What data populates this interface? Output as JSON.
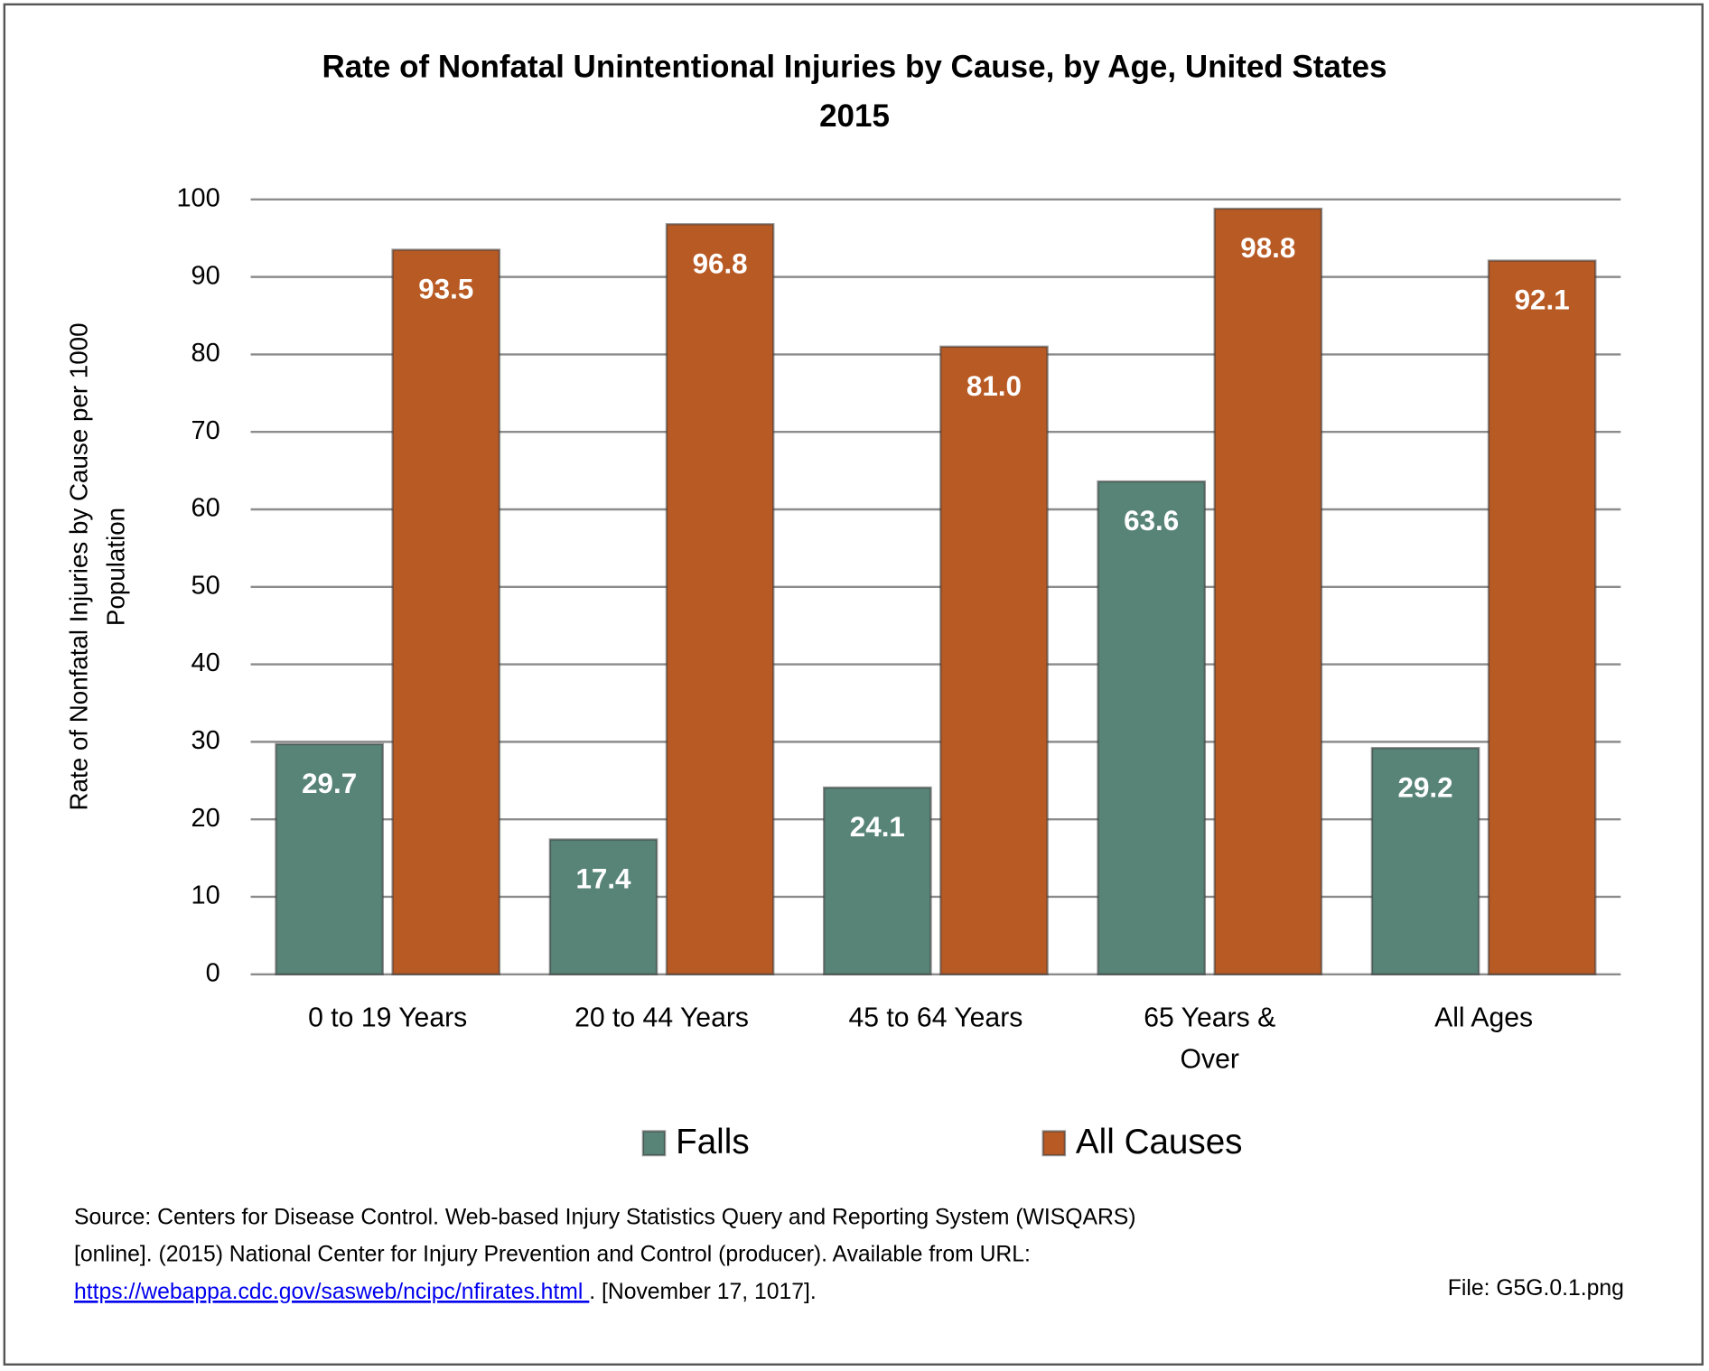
{
  "chart_data": {
    "type": "bar",
    "title": "Rate of Nonfatal Unintentional Injuries by Cause, by Age, United States 2015",
    "y_label": "Rate of Nonfatal Injuries by Cause per 1000 Population",
    "categories": [
      "0 to 19 Years",
      "20 to 44 Years",
      "45 to 64 Years",
      "65 Years & Over",
      "All Ages"
    ],
    "series": [
      {
        "name": "Falls",
        "color": "#588478",
        "values": [
          29.7,
          17.4,
          24.1,
          63.6,
          29.2
        ],
        "value_labels": [
          "29.7",
          "17.4",
          "24.1",
          "63.6",
          "29.2"
        ]
      },
      {
        "name": "All Causes",
        "color": "#b85a24",
        "values": [
          93.5,
          96.8,
          81.0,
          98.8,
          92.1
        ],
        "value_labels": [
          "93.5",
          "96.8",
          "81.0",
          "98.8",
          "92.1"
        ]
      }
    ],
    "ylim": [
      0,
      100
    ],
    "yticks": [
      0,
      10,
      20,
      30,
      40,
      50,
      60,
      70,
      80,
      90,
      100
    ],
    "grid": true,
    "legend": "bottom"
  },
  "source": {
    "line1": "Source: Centers for Disease Control. Web-based Injury Statistics Query and Reporting System (WISQARS)",
    "line2": "[online]. (2015) National Center for Injury Prevention and Control (producer).  Available from URL:",
    "link": "https://webappa.cdc.gov/sasweb/ncipc/nfirates.html ",
    "line3": ".  [November 17, 1017].",
    "file": "File: G5G.0.1.png"
  }
}
